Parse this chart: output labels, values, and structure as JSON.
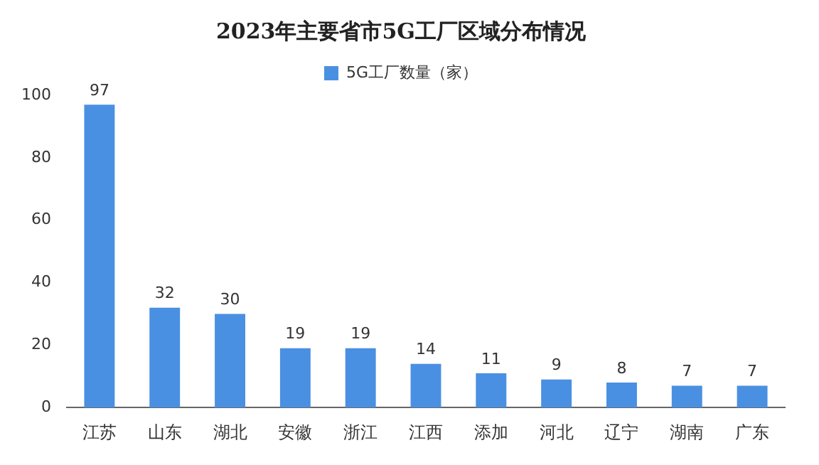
{
  "chart_data": {
    "type": "bar",
    "title": "2023年主要省市5G工厂区域分布情况",
    "categories": [
      "江苏",
      "山东",
      "湖北",
      "安徽",
      "浙江",
      "江西",
      "添加",
      "河北",
      "辽宁",
      "湖南",
      "广东"
    ],
    "series": [
      {
        "name": "5G工厂数量（家）",
        "color": "#4a90e2",
        "values": [
          97,
          32,
          30,
          19,
          19,
          14,
          11,
          9,
          8,
          7,
          7
        ]
      }
    ],
    "ylim": [
      0,
      100
    ],
    "yticks": [
      0,
      20,
      40,
      60,
      80,
      100
    ],
    "grid": false,
    "legend": "top",
    "data_labels": true
  }
}
